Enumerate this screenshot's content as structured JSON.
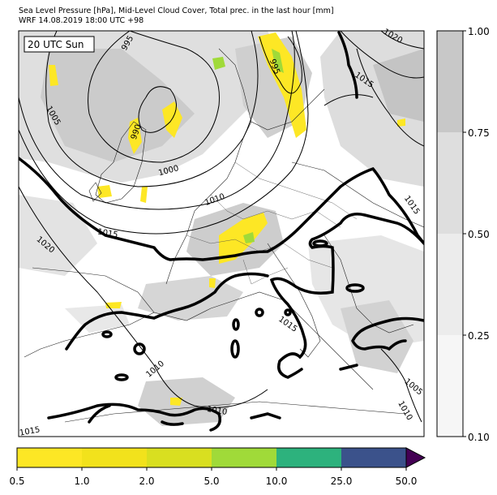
{
  "header": {
    "title_line1": "Sea Level Pressure [hPa], Mid-Level Cloud Cover, Total prec. in the last hour [mm]",
    "title_line2": "WRF 14.08.2019 18:00 UTC +98"
  },
  "map": {
    "time_label": "20 UTC Sun",
    "isobar_labels": [
      {
        "id": "995-a",
        "text": "995"
      },
      {
        "id": "995-b",
        "text": "995"
      },
      {
        "id": "990",
        "text": "990"
      },
      {
        "id": "1000",
        "text": "1000"
      },
      {
        "id": "1005-a",
        "text": "1005"
      },
      {
        "id": "1005-b",
        "text": "1005"
      },
      {
        "id": "1010-a",
        "text": "1010"
      },
      {
        "id": "1010-b",
        "text": "1010"
      },
      {
        "id": "1010-c",
        "text": "1010"
      },
      {
        "id": "1010-d",
        "text": "1010"
      },
      {
        "id": "1015-a",
        "text": "1015"
      },
      {
        "id": "1015-b",
        "text": "1015"
      },
      {
        "id": "1015-c",
        "text": "1015"
      },
      {
        "id": "1015-d",
        "text": "1015"
      },
      {
        "id": "1015-e",
        "text": "1015"
      },
      {
        "id": "1020-a",
        "text": "1020"
      },
      {
        "id": "1020-b",
        "text": "1020"
      }
    ]
  },
  "cloud_colorbar": {
    "ticks": [
      "1.00",
      "0.75",
      "0.50",
      "0.25",
      "0.10"
    ],
    "colors": [
      "#c8c8c8",
      "#dedede",
      "#ececec",
      "#f6f6f6"
    ]
  },
  "precip_colorbar": {
    "ticks": [
      "0.5",
      "1.0",
      "2.0",
      "5.0",
      "10.0",
      "25.0",
      "50.0"
    ],
    "colors": [
      "#fde725",
      "#f2e21c",
      "#d9df20",
      "#a0da39",
      "#2db27d",
      "#3b528b",
      "#440154"
    ]
  }
}
